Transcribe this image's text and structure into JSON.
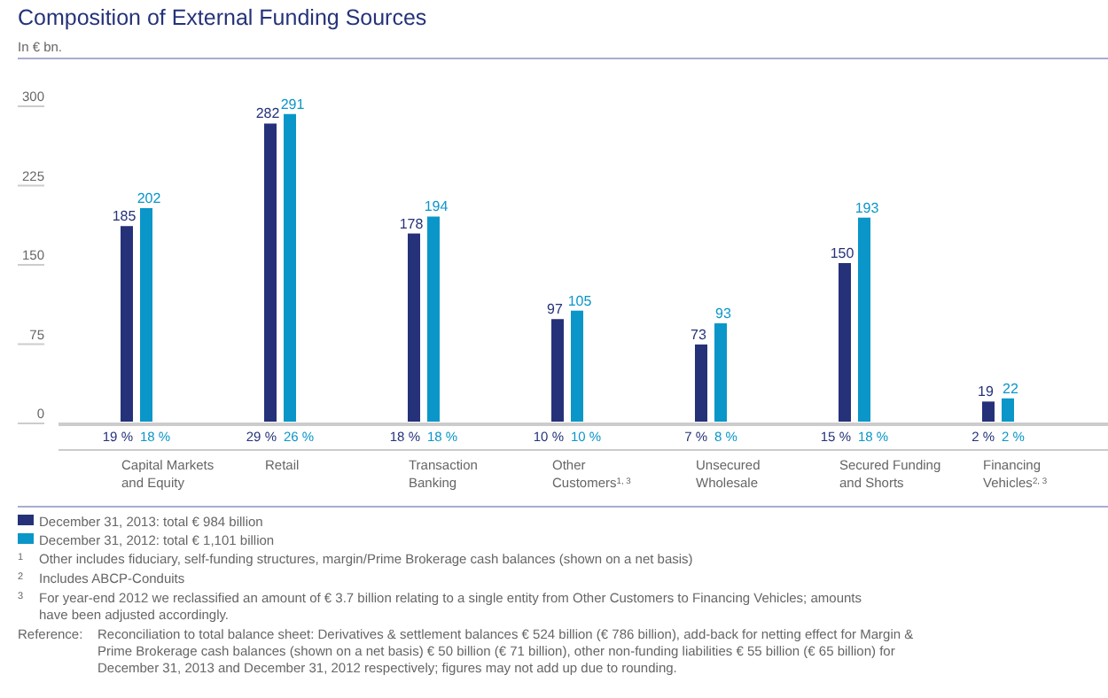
{
  "chart_data": {
    "type": "bar",
    "title": "Composition of External Funding Sources",
    "subtitle": "In € bn.",
    "categories": [
      "Capital Markets and Equity",
      "Retail",
      "Transaction Banking",
      "Other Customers$^{1, 3}$",
      "Unsecured Wholesale",
      "Secured Funding and Shorts",
      "Financing Vehicles$^{2, 3}$"
    ],
    "series": [
      {
        "name": "December 31, 2013: total € 984 billion",
        "color": "#25327a",
        "values": [
          185,
          282,
          178,
          97,
          73,
          150,
          19
        ]
      },
      {
        "name": "December 31, 2012: total € 1,101 billion",
        "color": "#0a96c8",
        "values": [
          202,
          291,
          194,
          105,
          93,
          193,
          22
        ]
      }
    ],
    "ylim": [
      0,
      300
    ],
    "yticks": [
      0,
      75,
      150,
      225,
      300
    ],
    "grid": false,
    "legend": "bottom",
    "data_labels": true,
    "annotations": [
      "19 %",
      "18 %",
      "29 %",
      "26 %",
      "18 %",
      "18 %",
      "10 %",
      "10 %",
      "7 %",
      "8 %",
      "15 %",
      "18 %",
      "2 %",
      "2 %",
      "$^{1}$ Other includes fiduciary, self-funding structures, margin/Prime Brokerage cash balances (shown on a net basis)",
      "$^{2}$ Includes ABCP-Conduits",
      "$^{3}$ For year-end 2012 we reclassified an amount of € 3.7 billion relating to a single entity from Other Customers to Financing Vehicles; amounts have been adjusted accordingly.",
      "Reference: Reconciliation to total balance sheet: Derivatives & settlement balances € 524 billion (€ 786 billion), add-back for netting effect for Margin & Prime Brokerage cash balances (shown on a net basis) € 50 billion (€ 71 billion), other non-funding liabilities € 55 billion (€ 65 billion) for December 31, 2013 and December 31, 2012 respectively; figures may not add up due to rounding."
    ]
  }
}
